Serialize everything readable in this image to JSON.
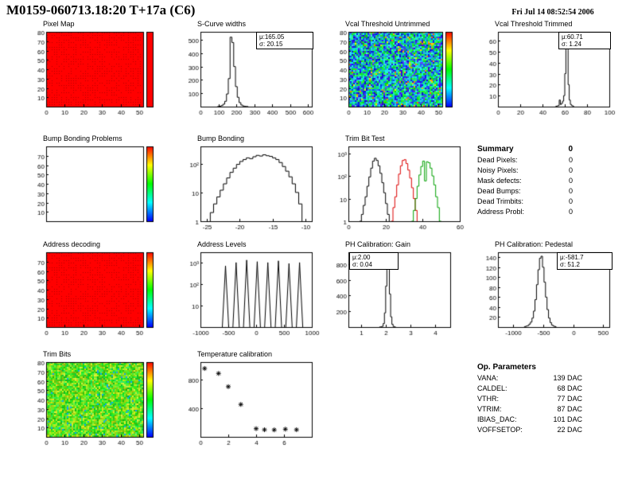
{
  "header": {
    "title": "M0159-060713.18:20 T+17a (C6)",
    "date": "Fri Jul 14 08:52:54 2006"
  },
  "summary": {
    "title": "Summary",
    "value": "0",
    "rows": [
      {
        "label": "Dead Pixels:",
        "value": "0"
      },
      {
        "label": "Noisy Pixels:",
        "value": "0"
      },
      {
        "label": "Mask defects:",
        "value": "0"
      },
      {
        "label": "Dead Bumps:",
        "value": "0"
      },
      {
        "label": "Dead Trimbits:",
        "value": "0"
      },
      {
        "label": "Address Probl:",
        "value": "0"
      }
    ]
  },
  "op_parameters": {
    "title": "Op. Parameters",
    "rows": [
      {
        "label": "VANA:",
        "value": "139 DAC"
      },
      {
        "label": "CALDEL:",
        "value": "68 DAC"
      },
      {
        "label": "VTHR:",
        "value": "77 DAC"
      },
      {
        "label": "VTRIM:",
        "value": "87 DAC"
      },
      {
        "label": "IBIAS_DAC:",
        "value": "101 DAC"
      },
      {
        "label": "VOFFSETOP:",
        "value": "22 DAC"
      }
    ]
  },
  "chart_data": [
    {
      "id": "pixel_map",
      "title": "Pixel Map",
      "type": "heatmap",
      "style": "red",
      "fill_color": "#ff0000",
      "xlim": [
        0,
        52
      ],
      "ylim": [
        0,
        80
      ],
      "xticks": [
        0,
        10,
        20,
        30,
        40,
        50
      ],
      "yticks": [
        10,
        20,
        30,
        40,
        50,
        60,
        70,
        80
      ],
      "colorbar": "red"
    },
    {
      "id": "s_curve",
      "title": "S-Curve widths",
      "type": "hist",
      "xlim": [
        0,
        620
      ],
      "xticks": [
        0,
        100,
        200,
        300,
        400,
        500,
        600
      ],
      "ylim": [
        0,
        560
      ],
      "yticks": [
        100,
        200,
        300,
        400,
        500
      ],
      "stats": [
        "μ:165.05",
        "σ: 20.15"
      ],
      "series": [
        {
          "color": "#000000",
          "x0": 95,
          "binw": 10,
          "counts": [
            1,
            3,
            8,
            18,
            40,
            95,
            210,
            520,
            480,
            300,
            150,
            70,
            30,
            12,
            5,
            2,
            1
          ]
        }
      ]
    },
    {
      "id": "vcal_untrimmed",
      "title": "Vcal Threshold Untrimmed",
      "type": "heatmap",
      "style": "cool-noise",
      "xlim": [
        0,
        52
      ],
      "ylim": [
        0,
        80
      ],
      "xticks": [
        0,
        10,
        20,
        30,
        40,
        50
      ],
      "yticks": [
        10,
        20,
        30,
        40,
        50,
        60,
        70,
        80
      ],
      "colorbar": "rainbow"
    },
    {
      "id": "vcal_trimmed",
      "title": "Vcal Threshold Trimmed",
      "type": "hist",
      "xlim": [
        0,
        100
      ],
      "xticks": [
        0,
        20,
        40,
        60,
        80,
        100
      ],
      "ylim": [
        0,
        68
      ],
      "yticks": [
        10,
        20,
        30,
        40,
        50,
        60
      ],
      "stats": [
        "μ:60.71",
        "σ: 1.24"
      ],
      "series": [
        {
          "color": "#000000",
          "x0": 52,
          "binw": 1,
          "counts": [
            0.4,
            0.6,
            1,
            6,
            2,
            3,
            5,
            10,
            30,
            62,
            55,
            20,
            6,
            2,
            1,
            0.5
          ]
        }
      ]
    },
    {
      "id": "bump_problems",
      "title": "Bump Bonding Problems",
      "type": "heatmap",
      "style": "empty",
      "xlim": [
        0,
        52
      ],
      "ylim": [
        0,
        80
      ],
      "xticks": [],
      "yticks": [
        10,
        20,
        30,
        40,
        50,
        60,
        70
      ],
      "colorbar": "rainbow"
    },
    {
      "id": "bump_bonding",
      "title": "Bump Bonding",
      "type": "hist",
      "ylog": true,
      "xlim": [
        -26,
        -9
      ],
      "xticks": [
        -25,
        -20,
        -15,
        -10
      ],
      "ylim": [
        1,
        400
      ],
      "yticks": [
        {
          "v": 1,
          "label": "1"
        },
        {
          "v": 10,
          "label": "10"
        },
        {
          "v": 100,
          "label": "10²"
        }
      ],
      "series": [
        {
          "color": "#000000",
          "x0": -24.5,
          "binw": 0.5,
          "counts": [
            2,
            4,
            7,
            12,
            20,
            32,
            50,
            70,
            95,
            120,
            140,
            160,
            150,
            175,
            195,
            185,
            205,
            190,
            180,
            160,
            140,
            110,
            80,
            55,
            35,
            20,
            10,
            4
          ]
        }
      ]
    },
    {
      "id": "trimbit_test",
      "title": "Trim Bit Test",
      "type": "hist",
      "ylog": true,
      "xlim": [
        0,
        60
      ],
      "xticks": [
        0,
        20,
        40,
        60
      ],
      "ylim": [
        1,
        2000
      ],
      "yticks": [
        {
          "v": 1,
          "label": "1"
        },
        {
          "v": 10,
          "label": "10"
        },
        {
          "v": 100,
          "label": "10²"
        },
        {
          "v": 1000,
          "label": "10³"
        }
      ],
      "series": [
        {
          "color": "#000000",
          "x0": 6,
          "binw": 1,
          "counts": [
            1,
            2,
            5,
            12,
            35,
            90,
            220,
            450,
            600,
            480,
            280,
            130,
            50,
            18,
            6,
            2
          ]
        },
        {
          "color": "#dd0000",
          "x0": 23,
          "binw": 1,
          "counts": [
            1,
            4,
            12,
            40,
            120,
            280,
            480,
            520,
            350,
            180,
            80,
            30,
            10,
            3
          ]
        },
        {
          "color": "#00a000",
          "x0": 34,
          "binw": 1,
          "counts": [
            1,
            3,
            10,
            35,
            110,
            260,
            450,
            60,
            420,
            380,
            220,
            100,
            40,
            12,
            4,
            1
          ]
        }
      ]
    },
    {
      "id": "addr_decoding",
      "title": "Address decoding",
      "type": "heatmap",
      "style": "red",
      "fill_color": "#ff0000",
      "xlim": [
        0,
        52
      ],
      "ylim": [
        0,
        80
      ],
      "xticks": [
        0,
        10,
        20,
        30,
        40,
        50
      ],
      "yticks": [
        10,
        20,
        30,
        40,
        50,
        60,
        70
      ],
      "colorbar": "rainbow"
    },
    {
      "id": "addr_levels",
      "title": "Address Levels",
      "type": "spikes",
      "ylog": true,
      "xlim": [
        -1000,
        1000
      ],
      "xticks": [
        -1000,
        -500,
        0,
        500,
        1000
      ],
      "ylim": [
        1,
        3000
      ],
      "yticks": [
        {
          "v": 10,
          "label": "10"
        },
        {
          "v": 100,
          "label": "10²"
        },
        {
          "v": 1000,
          "label": "10³"
        }
      ],
      "spikes": [
        [
          -550,
          700
        ],
        [
          -360,
          1000
        ],
        [
          -170,
          1300
        ],
        [
          20,
          1100
        ],
        [
          210,
          1000
        ],
        [
          400,
          1200
        ],
        [
          590,
          900
        ],
        [
          780,
          1000
        ]
      ]
    },
    {
      "id": "ph_gain",
      "title": "PH Calibration: Gain",
      "type": "hist",
      "xlim": [
        0.5,
        4.6
      ],
      "xticks": [
        1,
        2,
        3,
        4
      ],
      "ylim": [
        0,
        950
      ],
      "yticks": [
        200,
        400,
        600,
        800
      ],
      "stats": [
        "μ:2.00",
        "σ: 0.04"
      ],
      "series": [
        {
          "color": "#000000",
          "x0": 1.75,
          "binw": 0.05,
          "counts": [
            1,
            3,
            10,
            45,
            180,
            520,
            880,
            820,
            420,
            130,
            35,
            8,
            2
          ]
        }
      ]
    },
    {
      "id": "ph_pedestal",
      "title": "PH Calibration: Pedestal",
      "type": "hist",
      "xlim": [
        -1250,
        600
      ],
      "xticks": [
        -1000,
        -500,
        0,
        500
      ],
      "ylim": [
        0,
        150
      ],
      "yticks": [
        20,
        40,
        60,
        80,
        100,
        120,
        140
      ],
      "stats": [
        "μ:-581.7",
        "σ: 51.2"
      ],
      "series": [
        {
          "color": "#000000",
          "x0": -810,
          "binw": 25,
          "counts": [
            1,
            2,
            3,
            6,
            10,
            18,
            32,
            55,
            85,
            115,
            138,
            142,
            120,
            90,
            60,
            35,
            18,
            9,
            4,
            2,
            1
          ]
        }
      ]
    },
    {
      "id": "trim_bits",
      "title": "Trim Bits",
      "type": "heatmap",
      "style": "green-noise",
      "xlim": [
        0,
        52
      ],
      "ylim": [
        0,
        80
      ],
      "xticks": [
        0,
        10,
        20,
        30,
        40,
        50
      ],
      "yticks": [
        10,
        20,
        30,
        40,
        50,
        60,
        70,
        80
      ],
      "colorbar": "rainbow"
    },
    {
      "id": "temp_cal",
      "title": "Temperature calibration",
      "type": "scatter",
      "marker": "star",
      "xlim": [
        0,
        8
      ],
      "xticks": [
        0,
        2,
        4,
        6
      ],
      "ylim": [
        0,
        1050
      ],
      "yticks": [
        400,
        800
      ],
      "points": [
        [
          0.3,
          960
        ],
        [
          1.3,
          890
        ],
        [
          2.0,
          705
        ],
        [
          2.9,
          455
        ],
        [
          4.0,
          115
        ],
        [
          4.6,
          100
        ],
        [
          5.3,
          98
        ],
        [
          6.1,
          108
        ],
        [
          6.9,
          100
        ]
      ]
    }
  ]
}
